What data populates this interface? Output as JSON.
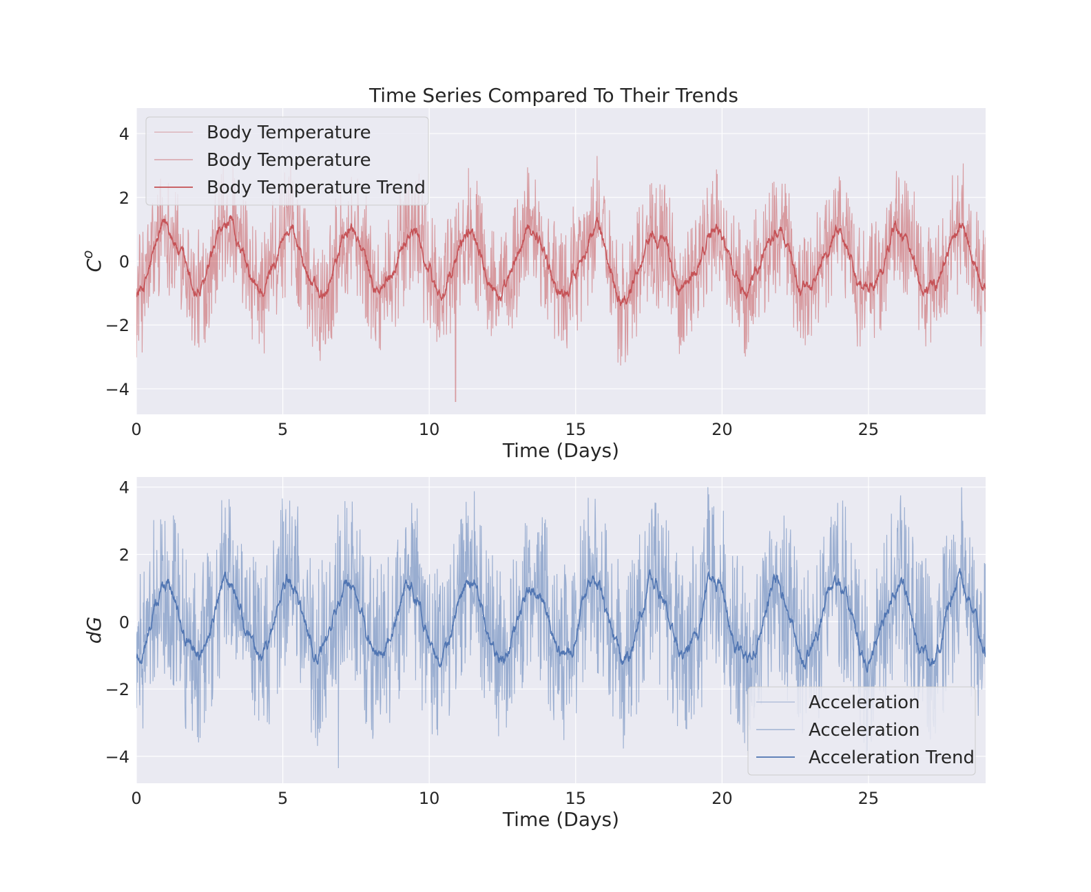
{
  "figure": {
    "title": "Time Series Compared To Their Trends",
    "background": "#ffffff",
    "axes_face": "#eaeaf2",
    "grid_color": "#ffffff"
  },
  "chart_data": [
    {
      "type": "line",
      "title": "Time Series Compared To Their Trends",
      "xlabel": "Time (Days)",
      "ylabel": "C^o",
      "ylabel_main": "C",
      "ylabel_sup": "o",
      "xlim": [
        0,
        29
      ],
      "ylim": [
        -4.8,
        4.8
      ],
      "xticks": [
        0,
        5,
        10,
        15,
        20,
        25
      ],
      "yticks": [
        4,
        2,
        0,
        -2,
        -4
      ],
      "ytick_labels": [
        "4",
        "2",
        "0",
        "−2",
        "−4"
      ],
      "grid": true,
      "legend_position": "upper left",
      "trend": {
        "period_days": 2.08,
        "amplitude": 1.0,
        "max_noise": 2.0,
        "extreme_low": {
          "x": 10.9,
          "y": -4.4
        }
      },
      "series": [
        {
          "name": "Body Temperature",
          "role": "raw",
          "color": "#c44e52",
          "opacity": 0.35
        },
        {
          "name": "Body Temperature",
          "role": "raw",
          "color": "#c44e52",
          "opacity": 0.45
        },
        {
          "name": "Body Temperature Trend",
          "role": "trend",
          "color": "#c44e52",
          "opacity": 1.0
        }
      ]
    },
    {
      "type": "line",
      "title": "",
      "xlabel": "Time (Days)",
      "ylabel": "dG",
      "xlim": [
        0,
        29
      ],
      "ylim": [
        -4.8,
        4.3
      ],
      "xticks": [
        0,
        5,
        10,
        15,
        20,
        25
      ],
      "yticks": [
        4,
        2,
        0,
        -2,
        -4
      ],
      "ytick_labels": [
        "4",
        "2",
        "0",
        "−2",
        "−4"
      ],
      "grid": true,
      "legend_position": "lower right",
      "trend": {
        "period_days": 2.08,
        "amplitude": 1.1,
        "max_noise": 2.7,
        "extreme_low": {
          "x": 6.9,
          "y": -4.35
        }
      },
      "series": [
        {
          "name": "Acceleration",
          "role": "raw",
          "color": "#4c72b0",
          "opacity": 0.35
        },
        {
          "name": "Acceleration",
          "role": "raw",
          "color": "#4c72b0",
          "opacity": 0.45
        },
        {
          "name": "Acceleration Trend",
          "role": "trend",
          "color": "#4c72b0",
          "opacity": 1.0
        }
      ]
    }
  ]
}
